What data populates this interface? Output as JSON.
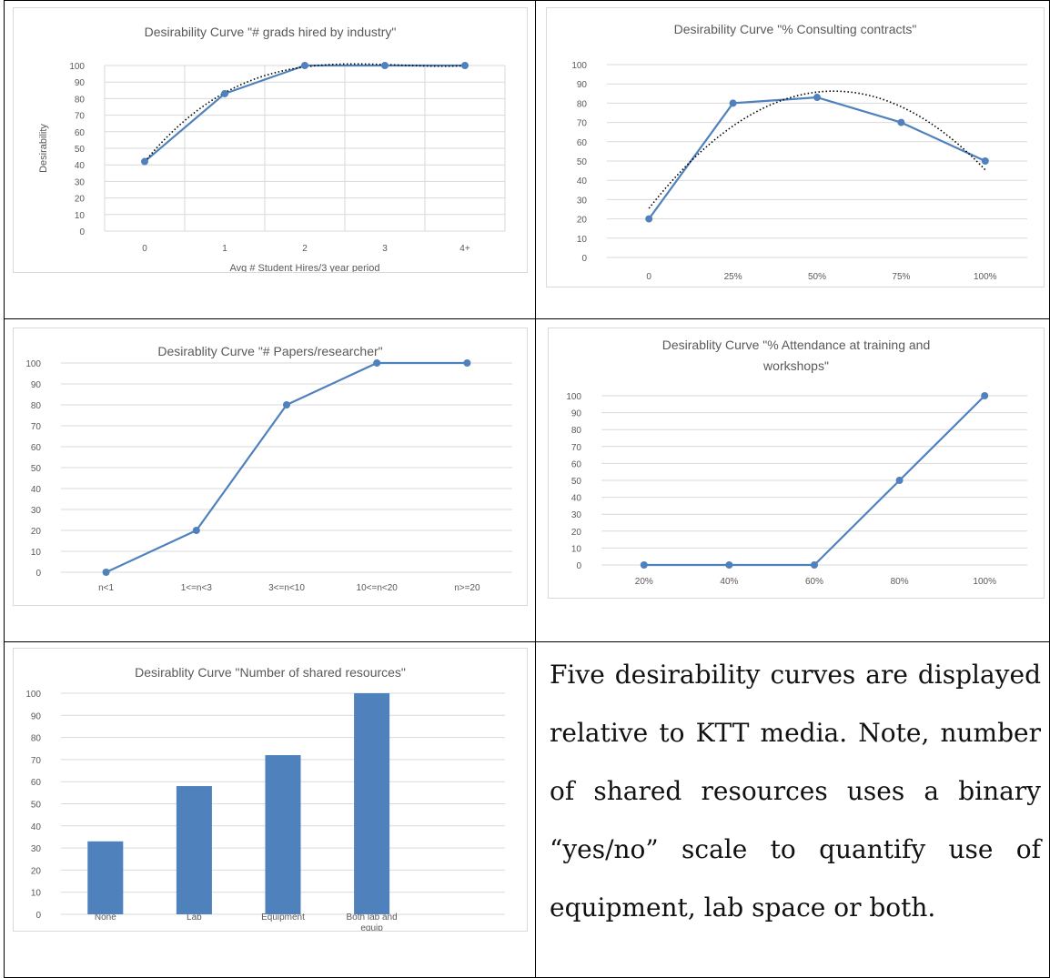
{
  "colors": {
    "series": "#4f81bd",
    "trend": "#000000",
    "grid": "#d9d9d9",
    "text": "#595959"
  },
  "paragraph": "Five desirability curves are displayed relative to KTT media. Note, number of shared resources uses a binary “yes/no” scale to quantify use of equipment, lab space or both.",
  "chart_data": [
    {
      "type": "line",
      "title": "Desirability Curve \"# grads hired by industry\"",
      "xlabel": "Avg # Student Hires/3 year period",
      "ylabel": "Desirability",
      "categories": [
        "0",
        "1",
        "2",
        "3",
        "4+"
      ],
      "values": [
        42,
        83,
        100,
        100,
        100
      ],
      "trendline": "polynomial (dotted)",
      "ylim": [
        0,
        100
      ],
      "yticks": [
        0,
        10,
        20,
        30,
        40,
        50,
        60,
        70,
        80,
        90,
        100
      ],
      "grid": "horizontal and vertical"
    },
    {
      "type": "line",
      "title": "Desirability Curve \"% Consulting contracts\"",
      "xlabel": "",
      "ylabel": "",
      "categories": [
        "0",
        "25%",
        "50%",
        "75%",
        "100%"
      ],
      "values": [
        20,
        80,
        83,
        70,
        50
      ],
      "trendline": "polynomial (dotted)",
      "ylim": [
        0,
        100
      ],
      "yticks": [
        0,
        10,
        20,
        30,
        40,
        50,
        60,
        70,
        80,
        90,
        100
      ],
      "grid": "horizontal"
    },
    {
      "type": "line",
      "title": "Desirablity Curve \"# Papers/researcher\"",
      "xlabel": "",
      "ylabel": "",
      "categories": [
        "n<1",
        "1<=n<3",
        "3<=n<10",
        "10<=n<20",
        "n>=20"
      ],
      "values": [
        0,
        20,
        80,
        100,
        100
      ],
      "ylim": [
        0,
        100
      ],
      "yticks": [
        0,
        10,
        20,
        30,
        40,
        50,
        60,
        70,
        80,
        90,
        100
      ],
      "grid": "horizontal"
    },
    {
      "type": "line",
      "title_lines": [
        "Desirablity Curve \"% Attendance at training and",
        "workshops\""
      ],
      "xlabel": "",
      "ylabel": "",
      "categories": [
        "20%",
        "40%",
        "60%",
        "80%",
        "100%"
      ],
      "values": [
        0,
        0,
        0,
        50,
        100
      ],
      "ylim": [
        0,
        100
      ],
      "yticks": [
        0,
        10,
        20,
        30,
        40,
        50,
        60,
        70,
        80,
        90,
        100
      ],
      "grid": "horizontal"
    },
    {
      "type": "bar",
      "title": "Desirablity Curve \"Number of shared resources\"",
      "xlabel": "",
      "ylabel": "",
      "categories": [
        [
          "None"
        ],
        [
          "Lab"
        ],
        [
          "Equipment"
        ],
        [
          "Both lab and",
          "equip"
        ]
      ],
      "values": [
        33,
        58,
        72,
        100
      ],
      "slots": 5,
      "ylim": [
        0,
        100
      ],
      "yticks": [
        0,
        10,
        20,
        30,
        40,
        50,
        60,
        70,
        80,
        90,
        100
      ],
      "grid": "horizontal"
    }
  ]
}
